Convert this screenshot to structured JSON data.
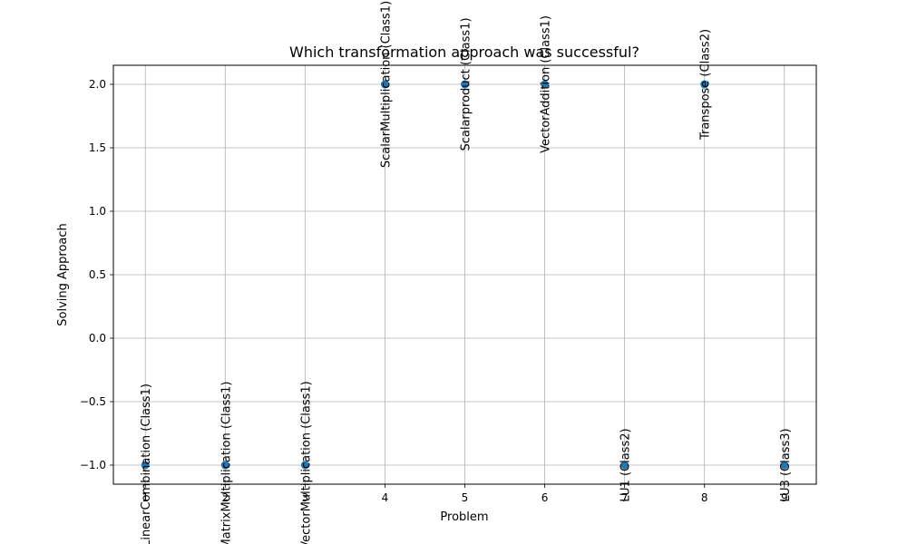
{
  "chart_data": {
    "type": "scatter",
    "title": "Which transformation approach was successful?",
    "xlabel": "Problem",
    "ylabel": "Solving Approach",
    "xlim": [
      0.6,
      9.4
    ],
    "ylim": [
      -1.15,
      2.15
    ],
    "x_ticks": [
      1,
      2,
      3,
      4,
      5,
      6,
      7,
      8,
      9
    ],
    "y_ticks": [
      -1.0,
      -0.5,
      0.0,
      0.5,
      1.0,
      1.5,
      2.0
    ],
    "y_tick_labels": [
      "−1.0",
      "−0.5",
      "0.0",
      "0.5",
      "1.0",
      "1.5",
      "2.0"
    ],
    "grid": true,
    "marker_color": "#1f77b4",
    "points": [
      {
        "x": 1,
        "y": -1,
        "label": "LinearCombination (Class1)"
      },
      {
        "x": 2,
        "y": -1,
        "label": "MatrixMultiplication (Class1)"
      },
      {
        "x": 3,
        "y": -1,
        "label": "VectorMultiplication (Class1)"
      },
      {
        "x": 4,
        "y": 2,
        "label": "ScalarMultiplication (Class1)"
      },
      {
        "x": 5,
        "y": 2,
        "label": "Scalarproduct (Class1)"
      },
      {
        "x": 6,
        "y": 2,
        "label": "VectorAddition (Class1)"
      },
      {
        "x": 7,
        "y": -1,
        "label": "LU1 (Class2)"
      },
      {
        "x": 8,
        "y": 2,
        "label": "Transpose (Class2)"
      },
      {
        "x": 9,
        "y": -1,
        "label": "LU3 (Class3)"
      }
    ]
  }
}
